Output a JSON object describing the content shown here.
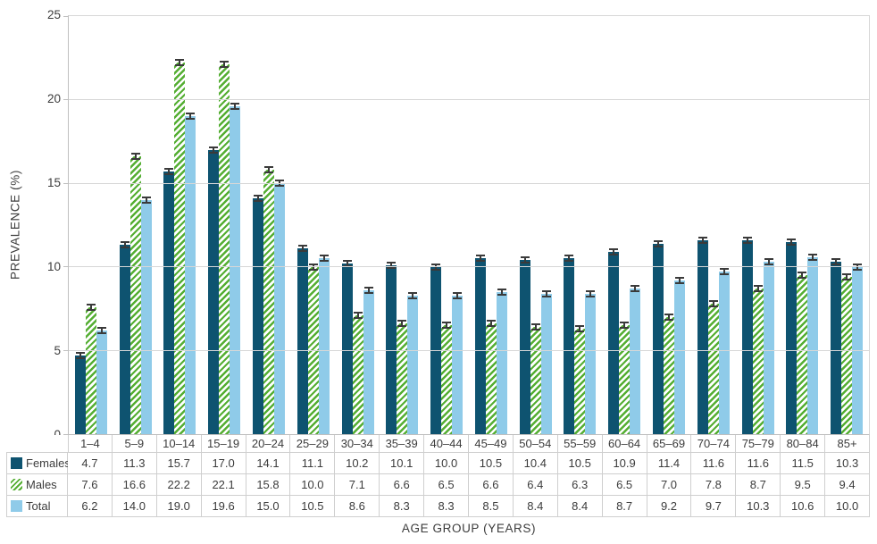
{
  "chart_data": {
    "type": "bar",
    "title": "",
    "xlabel": "AGE GROUP (YEARS)",
    "ylabel": "PREVALENCE (%)",
    "ylim": [
      0,
      25
    ],
    "yticks": [
      0,
      5,
      10,
      15,
      20,
      25
    ],
    "grid": "horizontal",
    "error_bars": true,
    "legend_position": "table-left",
    "categories": [
      "1–4",
      "5–9",
      "10–14",
      "15–19",
      "20–24",
      "25–29",
      "30–34",
      "35–39",
      "40–44",
      "45–49",
      "50–54",
      "55–59",
      "60–64",
      "65–69",
      "70–74",
      "75–79",
      "80–84",
      "85+"
    ],
    "series": [
      {
        "name": "Females",
        "pattern": "solid",
        "color": "#0e5370",
        "values": [
          4.7,
          11.3,
          15.7,
          17.0,
          14.1,
          11.1,
          10.2,
          10.1,
          10.0,
          10.5,
          10.4,
          10.5,
          10.9,
          11.4,
          11.6,
          11.6,
          11.5,
          10.3
        ]
      },
      {
        "name": "Males",
        "pattern": "diagonal-stripes",
        "color": "#54ae32",
        "values": [
          7.6,
          16.6,
          22.2,
          22.1,
          15.8,
          10.0,
          7.1,
          6.6,
          6.5,
          6.6,
          6.4,
          6.3,
          6.5,
          7.0,
          7.8,
          8.7,
          9.5,
          9.4
        ]
      },
      {
        "name": "Total",
        "pattern": "solid",
        "color": "#8fcbe9",
        "values": [
          6.2,
          14.0,
          19.0,
          19.6,
          15.0,
          10.5,
          8.6,
          8.3,
          8.3,
          8.5,
          8.4,
          8.4,
          8.7,
          9.2,
          9.7,
          10.3,
          10.6,
          10.0
        ]
      }
    ]
  },
  "colors": {
    "gridline": "#d7d7d7",
    "axis": "#bfbfbf",
    "table_border": "#cfcfcf",
    "text": "#3c3c3c",
    "error_bar": "#3a3a3a"
  }
}
